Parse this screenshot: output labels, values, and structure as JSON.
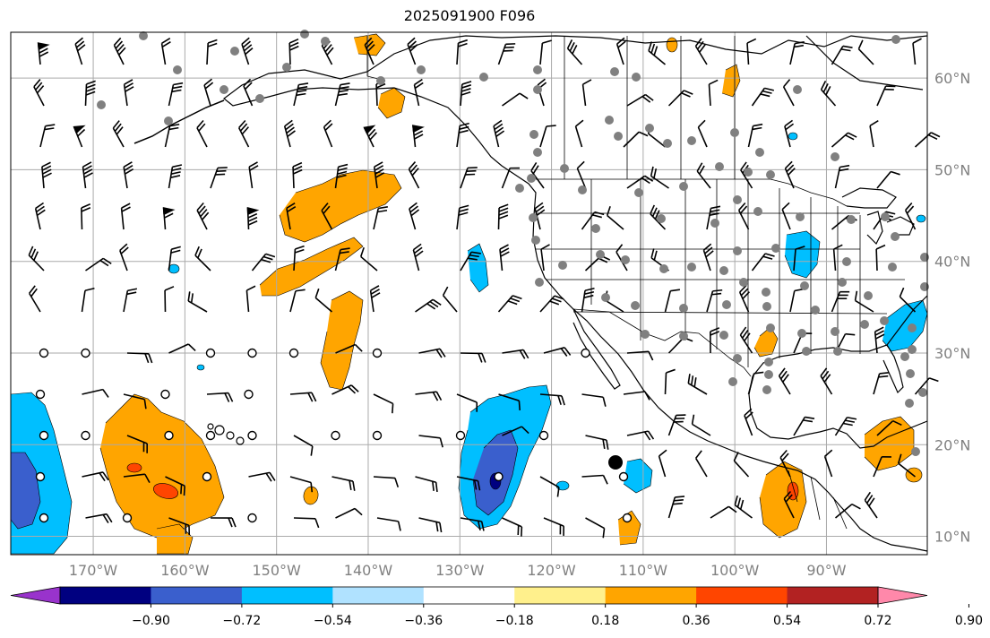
{
  "title": "2025091900 F096",
  "lat_labels": [
    {
      "lat": 60,
      "text": "60°N"
    },
    {
      "lat": 50,
      "text": "50°N"
    },
    {
      "lat": 40,
      "text": "40°N"
    },
    {
      "lat": 30,
      "text": "30°N"
    },
    {
      "lat": 20,
      "text": "20°N"
    },
    {
      "lat": 10,
      "text": "10°N"
    }
  ],
  "lon_labels": [
    {
      "lon": -170,
      "text": "170°W"
    },
    {
      "lon": -160,
      "text": "160°W"
    },
    {
      "lon": -150,
      "text": "150°W"
    },
    {
      "lon": -140,
      "text": "140°W"
    },
    {
      "lon": -130,
      "text": "130°W"
    },
    {
      "lon": -120,
      "text": "120°W"
    },
    {
      "lon": -110,
      "text": "110°W"
    },
    {
      "lon": -100,
      "text": "100°W"
    },
    {
      "lon": -90,
      "text": "90°W"
    }
  ],
  "map_extent": {
    "lon_min": -179,
    "lon_max": -79,
    "lat_min": 8,
    "lat_max": 65
  },
  "colorbar": {
    "colors": [
      "#9933cc",
      "#000080",
      "#3a5fcd",
      "#00bfff",
      "#b0e2ff",
      "#ffffff",
      "#fff08c",
      "#ffa500",
      "#ff4500",
      "#b22222",
      "#ff88aa"
    ],
    "tick_labels": [
      "−0.90",
      "−0.72",
      "−0.54",
      "−0.36",
      "−0.18",
      "0.18",
      "0.36",
      "0.54",
      "0.72",
      "0.90"
    ]
  },
  "colors": {
    "positive_orange": "#ffa500",
    "positive_red": "#ff4500",
    "negative_light": "#00bfff",
    "negative_mid": "#3a5fcd",
    "negative_dark": "#000080",
    "grid": "#aaaaaa",
    "station_dot": "#808080"
  }
}
